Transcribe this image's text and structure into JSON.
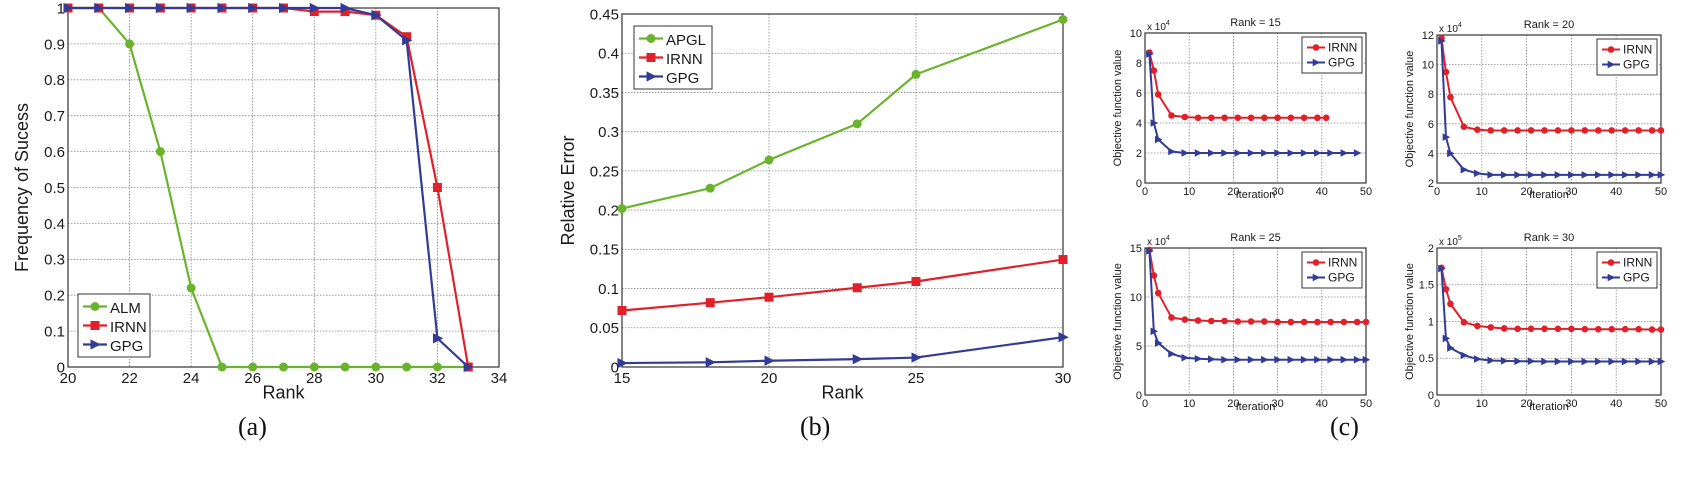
{
  "chart_data": [
    {
      "id": "a",
      "type": "line",
      "caption": "(a)",
      "title": "",
      "xlabel": "Rank",
      "ylabel": "Frequency of Sucess",
      "xlim": [
        20,
        34
      ],
      "ylim": [
        0,
        1
      ],
      "xticks": [
        20,
        22,
        24,
        26,
        28,
        30,
        32,
        34
      ],
      "yticks": [
        0,
        0.1,
        0.2,
        0.3,
        0.4,
        0.5,
        0.6,
        0.7,
        0.8,
        0.9,
        1
      ],
      "ytick_labels": [
        "0",
        "0.1",
        "0.2",
        "0.3",
        "0.4",
        "0.5",
        "0.6",
        "0.7",
        "0.8",
        "0.9",
        "1"
      ],
      "grid": true,
      "legend_position": "lower left",
      "x": [
        20,
        21,
        22,
        23,
        24,
        25,
        26,
        27,
        28,
        29,
        30,
        31,
        32,
        33
      ],
      "series": [
        {
          "name": "ALM",
          "color": "#6ab42d",
          "marker": "circle",
          "values": [
            1,
            1,
            0.9,
            0.6,
            0.22,
            0,
            0,
            0,
            0,
            0,
            0,
            0,
            0,
            0
          ]
        },
        {
          "name": "IRNN",
          "color": "#e0202a",
          "marker": "square",
          "values": [
            1,
            1,
            1,
            1,
            1,
            1,
            1,
            1,
            0.99,
            0.99,
            0.98,
            0.92,
            0.5,
            0
          ]
        },
        {
          "name": "GPG",
          "color": "#323c96",
          "marker": "triangle-right",
          "values": [
            1,
            1,
            1,
            1,
            1,
            1,
            1,
            1,
            1,
            1,
            0.98,
            0.91,
            0.08,
            0
          ]
        }
      ]
    },
    {
      "id": "b",
      "type": "line",
      "caption": "(b)",
      "title": "",
      "xlabel": "Rank",
      "ylabel": "Relative Error",
      "xlim": [
        15,
        30
      ],
      "ylim": [
        0,
        0.45
      ],
      "xticks": [
        15,
        20,
        25,
        30
      ],
      "yticks": [
        0,
        0.05,
        0.1,
        0.15,
        0.2,
        0.25,
        0.3,
        0.35,
        0.4,
        0.45
      ],
      "ytick_labels": [
        "0",
        "0.05",
        "0.1",
        "0.15",
        "0.2",
        "0.25",
        "0.3",
        "0.35",
        "0.4",
        "0.45"
      ],
      "grid": true,
      "legend_position": "upper left",
      "x": [
        15,
        18,
        20,
        23,
        25,
        30
      ],
      "series": [
        {
          "name": "APGL",
          "color": "#6ab42d",
          "marker": "circle",
          "values": [
            0.202,
            0.228,
            0.264,
            0.31,
            0.373,
            0.443
          ]
        },
        {
          "name": "IRNN",
          "color": "#e0202a",
          "marker": "square",
          "values": [
            0.072,
            0.082,
            0.089,
            0.101,
            0.109,
            0.137
          ]
        },
        {
          "name": "GPG",
          "color": "#323c96",
          "marker": "triangle-right",
          "values": [
            0.005,
            0.006,
            0.008,
            0.01,
            0.012,
            0.038
          ]
        }
      ]
    },
    {
      "id": "c1",
      "type": "line",
      "caption": "(c)",
      "title": "Rank = 15",
      "xlabel": "Iteration",
      "ylabel": "Objective function value",
      "yscale_label": "x 10",
      "yscale_exp": "4",
      "xlim": [
        0,
        50
      ],
      "ylim": [
        0,
        10
      ],
      "xticks": [
        0,
        10,
        20,
        30,
        40,
        50
      ],
      "yticks": [
        0,
        2,
        4,
        6,
        8,
        10
      ],
      "ytick_labels": [
        "0",
        "2",
        "4",
        "6",
        "8",
        "10"
      ],
      "grid": true,
      "legend_position": "upper right",
      "series": [
        {
          "name": "IRNN",
          "color": "#e0202a",
          "marker": "circle",
          "x": [
            1,
            2,
            3,
            6,
            9,
            12,
            15,
            18,
            21,
            24,
            27,
            30,
            33,
            36,
            39,
            41
          ],
          "values": [
            8.7,
            7.5,
            5.9,
            4.5,
            4.4,
            4.35,
            4.35,
            4.35,
            4.35,
            4.35,
            4.35,
            4.35,
            4.35,
            4.35,
            4.35,
            4.35
          ]
        },
        {
          "name": "GPG",
          "color": "#323c96",
          "marker": "triangle-right",
          "x": [
            1,
            2,
            3,
            6,
            9,
            12,
            15,
            18,
            21,
            24,
            27,
            30,
            33,
            36,
            39,
            42,
            45,
            48
          ],
          "values": [
            8.6,
            4.0,
            2.9,
            2.1,
            2.0,
            2.0,
            2.0,
            2.0,
            2.0,
            2.0,
            2.0,
            2.0,
            2.0,
            2.0,
            2.0,
            2.0,
            2.0,
            2.0
          ]
        }
      ]
    },
    {
      "id": "c2",
      "type": "line",
      "caption": "(c)",
      "title": "Rank = 20",
      "xlabel": "Iteration",
      "ylabel": "Objective function value",
      "yscale_label": "x 10",
      "yscale_exp": "4",
      "xlim": [
        0,
        50
      ],
      "ylim": [
        2,
        12
      ],
      "xticks": [
        0,
        10,
        20,
        30,
        40,
        50
      ],
      "yticks": [
        2,
        4,
        6,
        8,
        10,
        12
      ],
      "ytick_labels": [
        "2",
        "4",
        "6",
        "8",
        "10",
        "12"
      ],
      "grid": true,
      "legend_position": "upper right",
      "series": [
        {
          "name": "IRNN",
          "color": "#e0202a",
          "marker": "circle",
          "x": [
            1,
            2,
            3,
            6,
            9,
            12,
            15,
            18,
            21,
            24,
            27,
            30,
            33,
            36,
            39,
            42,
            45,
            48,
            50
          ],
          "values": [
            11.8,
            9.5,
            7.8,
            5.8,
            5.6,
            5.55,
            5.55,
            5.55,
            5.55,
            5.55,
            5.55,
            5.55,
            5.55,
            5.55,
            5.55,
            5.55,
            5.55,
            5.55,
            5.55
          ]
        },
        {
          "name": "GPG",
          "color": "#323c96",
          "marker": "triangle-right",
          "x": [
            1,
            2,
            3,
            6,
            9,
            12,
            15,
            18,
            21,
            24,
            27,
            30,
            33,
            36,
            39,
            42,
            45,
            48,
            50
          ],
          "values": [
            11.6,
            5.1,
            4.0,
            2.9,
            2.65,
            2.55,
            2.55,
            2.55,
            2.55,
            2.55,
            2.55,
            2.55,
            2.55,
            2.55,
            2.55,
            2.55,
            2.55,
            2.55,
            2.55
          ]
        }
      ]
    },
    {
      "id": "c3",
      "type": "line",
      "caption": "(c)",
      "title": "Rank = 25",
      "xlabel": "Iteration",
      "ylabel": "Objective function value",
      "yscale_label": "x 10",
      "yscale_exp": "4",
      "xlim": [
        0,
        50
      ],
      "ylim": [
        0,
        15
      ],
      "xticks": [
        0,
        10,
        20,
        30,
        40,
        50
      ],
      "yticks": [
        0,
        5,
        10,
        15
      ],
      "ytick_labels": [
        "0",
        "5",
        "10",
        "15"
      ],
      "grid": true,
      "legend_position": "upper right",
      "series": [
        {
          "name": "IRNN",
          "color": "#e0202a",
          "marker": "circle",
          "x": [
            1,
            2,
            3,
            6,
            9,
            12,
            15,
            18,
            21,
            24,
            27,
            30,
            33,
            36,
            39,
            42,
            45,
            48,
            50
          ],
          "values": [
            14.8,
            12.2,
            10.4,
            7.9,
            7.7,
            7.6,
            7.55,
            7.55,
            7.5,
            7.5,
            7.5,
            7.45,
            7.45,
            7.45,
            7.45,
            7.45,
            7.45,
            7.45,
            7.45
          ]
        },
        {
          "name": "GPG",
          "color": "#323c96",
          "marker": "triangle-right",
          "x": [
            1,
            2,
            3,
            6,
            9,
            12,
            15,
            18,
            21,
            24,
            27,
            30,
            33,
            36,
            39,
            42,
            45,
            48,
            50
          ],
          "values": [
            14.7,
            6.5,
            5.3,
            4.2,
            3.8,
            3.7,
            3.65,
            3.6,
            3.6,
            3.6,
            3.6,
            3.6,
            3.6,
            3.6,
            3.6,
            3.6,
            3.6,
            3.6,
            3.6
          ]
        }
      ]
    },
    {
      "id": "c4",
      "type": "line",
      "caption": "(c)",
      "title": "Rank = 30",
      "xlabel": "Iteration",
      "ylabel": "Objective function value",
      "yscale_label": "x 10",
      "yscale_exp": "5",
      "xlim": [
        0,
        50
      ],
      "ylim": [
        0,
        2
      ],
      "xticks": [
        0,
        10,
        20,
        30,
        40,
        50
      ],
      "yticks": [
        0,
        0.5,
        1,
        1.5,
        2
      ],
      "ytick_labels": [
        "0",
        "0.5",
        "1",
        "1.5",
        "2"
      ],
      "grid": true,
      "legend_position": "upper right",
      "series": [
        {
          "name": "IRNN",
          "color": "#e0202a",
          "marker": "circle",
          "x": [
            1,
            2,
            3,
            6,
            9,
            12,
            15,
            18,
            21,
            24,
            27,
            30,
            33,
            36,
            39,
            42,
            45,
            48,
            50
          ],
          "values": [
            1.73,
            1.44,
            1.24,
            0.99,
            0.94,
            0.92,
            0.905,
            0.9,
            0.9,
            0.9,
            0.9,
            0.9,
            0.895,
            0.895,
            0.895,
            0.895,
            0.895,
            0.89,
            0.89
          ]
        },
        {
          "name": "GPG",
          "color": "#323c96",
          "marker": "triangle-right",
          "x": [
            1,
            2,
            3,
            6,
            9,
            12,
            15,
            18,
            21,
            24,
            27,
            30,
            33,
            36,
            39,
            42,
            45,
            48,
            50
          ],
          "values": [
            1.72,
            0.77,
            0.64,
            0.54,
            0.49,
            0.47,
            0.465,
            0.46,
            0.46,
            0.455,
            0.455,
            0.455,
            0.455,
            0.455,
            0.455,
            0.455,
            0.455,
            0.455,
            0.455
          ]
        }
      ]
    }
  ],
  "captions": {
    "a": "(a)",
    "b": "(b)",
    "c": "(c)"
  }
}
